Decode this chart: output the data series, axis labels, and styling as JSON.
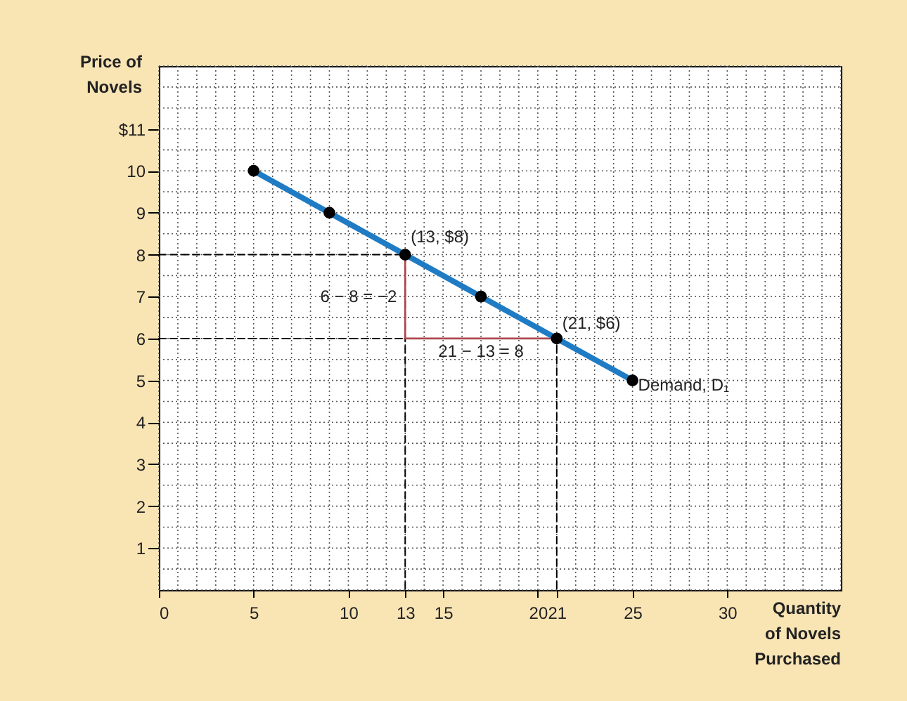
{
  "chart_data": {
    "type": "line",
    "xlabel": "Quantity of Novels Purchased",
    "ylabel": "Price of Novels",
    "xlim": [
      0,
      36
    ],
    "ylim": [
      0,
      12.5
    ],
    "xticks": [
      0,
      5,
      10,
      13,
      15,
      20,
      21,
      25,
      30
    ],
    "yticks": [
      1,
      2,
      3,
      4,
      5,
      6,
      7,
      8,
      9,
      10,
      {
        "value": 11,
        "label": "$11"
      }
    ],
    "grid": true,
    "series": [
      {
        "type": "line",
        "color": "#000000",
        "line_style": "dashed",
        "x": [
          0,
          13,
          13
        ],
        "values": [
          8,
          8,
          0
        ]
      },
      {
        "type": "line",
        "color": "#000000",
        "line_style": "dashed",
        "x": [
          0,
          21,
          21
        ],
        "values": [
          6,
          6,
          0
        ]
      },
      {
        "type": "line",
        "color": "#b0474f",
        "line_style": "solid",
        "x": [
          13,
          13,
          21
        ],
        "values": [
          8,
          6,
          6
        ]
      },
      {
        "type": "line",
        "color": "#1f7cc4",
        "line_style": "solid",
        "x": [
          5,
          9,
          13,
          17,
          21,
          25
        ],
        "values": [
          10,
          9,
          8,
          7,
          6,
          5
        ]
      },
      {
        "type": "scatter",
        "color": "#000000",
        "marker": "circle",
        "x": [
          5,
          9,
          13,
          17,
          21,
          25
        ],
        "values": [
          10,
          9,
          8,
          7,
          6,
          5
        ]
      }
    ],
    "annotations": [
      {
        "text": "(13, $8)",
        "x": 13,
        "y": 8
      },
      {
        "text": "(21, $6)",
        "x": 21,
        "y": 6
      },
      {
        "text": "6 − 8 = −2",
        "x": 13,
        "y": 7
      },
      {
        "text": "21 − 13 = 8",
        "x": 17,
        "y": 6
      },
      {
        "text": "Demand, D₁",
        "x": 25,
        "y": 5
      }
    ]
  }
}
